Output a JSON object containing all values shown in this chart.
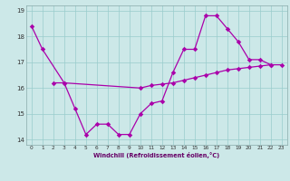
{
  "background_color": "#cce8e8",
  "line_color": "#aa00aa",
  "grid_color": "#99cccc",
  "xlabel": "Windchill (Refroidissement éolien,°C)",
  "xlim": [
    -0.5,
    23.5
  ],
  "ylim": [
    13.8,
    19.2
  ],
  "xticks": [
    0,
    1,
    2,
    3,
    4,
    5,
    6,
    7,
    8,
    9,
    10,
    11,
    12,
    13,
    14,
    15,
    16,
    17,
    18,
    19,
    20,
    21,
    22,
    23
  ],
  "yticks": [
    14,
    15,
    16,
    17,
    18,
    19
  ],
  "series1_x": [
    0,
    1,
    3,
    4,
    5,
    6,
    7,
    8,
    9,
    10,
    11,
    12,
    13,
    14,
    15,
    16,
    17,
    18,
    19,
    20,
    21,
    22
  ],
  "series1_y": [
    18.4,
    17.5,
    16.2,
    15.2,
    14.2,
    14.6,
    14.6,
    14.2,
    14.2,
    15.0,
    15.4,
    15.5,
    16.6,
    17.5,
    17.5,
    18.8,
    18.8,
    18.3,
    17.8,
    17.1,
    17.1,
    16.9
  ],
  "series2_x": [
    2,
    3,
    10,
    11,
    12,
    13,
    14,
    15,
    16,
    17,
    18,
    19,
    20,
    21,
    22,
    23
  ],
  "series2_y": [
    16.2,
    16.2,
    16.0,
    16.1,
    16.15,
    16.2,
    16.3,
    16.4,
    16.5,
    16.6,
    16.7,
    16.75,
    16.8,
    16.85,
    16.9,
    16.9
  ]
}
